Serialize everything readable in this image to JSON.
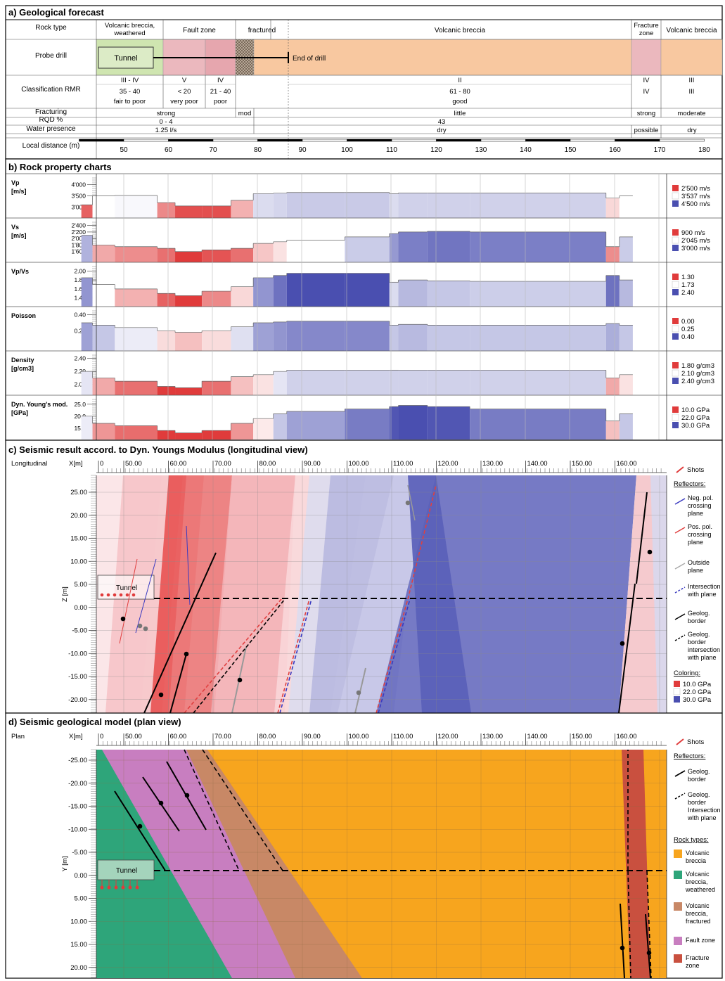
{
  "sections": {
    "a_title": "a) Geological forecast",
    "b_title": "b) Rock property charts",
    "c_title": "c) Seismic result accord. to Dyn. Youngs Modulus (longitudinal view)",
    "d_title": "d) Seismic geological model (plan view)"
  },
  "forecast": {
    "row_labels": [
      "Rock type",
      "Probe drill",
      "Classification RMR",
      "Fracturing",
      "RQD %",
      "Water presence",
      "Local distance (m)"
    ],
    "rock_type_cells": [
      {
        "id": "rt1",
        "text": "Volcanic breccia, weathered"
      },
      {
        "id": "rt2",
        "text": "Fault zone"
      },
      {
        "id": "rt3",
        "text": "fractured"
      },
      {
        "id": "rt4",
        "text": "Volcanic breccia"
      },
      {
        "id": "rt5",
        "text": "Fracture zone"
      },
      {
        "id": "rt6",
        "text": "Volcanic breccia"
      }
    ],
    "probe": {
      "tunnel": "Tunnel",
      "end": "End of drill"
    },
    "rmr_cells": [
      {
        "id": "r1",
        "cls": "III - IV",
        "val": "35 - 40",
        "desc": "fair to poor"
      },
      {
        "id": "r2",
        "cls": "V",
        "val": "< 20",
        "desc": "very poor"
      },
      {
        "id": "r3",
        "cls": "IV",
        "val": "21 - 40",
        "desc": "poor"
      },
      {
        "id": "r4",
        "cls": "II",
        "val": "61 - 80",
        "desc": "good"
      },
      {
        "id": "r5",
        "cls": "IV",
        "val": "",
        "desc": ""
      },
      {
        "id": "r6",
        "cls": "III",
        "val": "",
        "desc": ""
      }
    ],
    "fracturing": [
      "strong",
      "mod",
      "little",
      "strong",
      "moderate"
    ],
    "rqd": [
      "0 - 4",
      "43"
    ],
    "water": [
      "1.25 l/s",
      "dry",
      "possible",
      "dry"
    ],
    "distance_ticks": [
      "50",
      "60",
      "70",
      "80",
      "90",
      "100",
      "110",
      "120",
      "130",
      "140",
      "150",
      "160",
      "170",
      "180"
    ]
  },
  "chart_data": [
    {
      "type": "area",
      "title": "b) Rock property charts",
      "x_unit": "m",
      "x_breaks": [
        40.5,
        43,
        48,
        57.5,
        61.5,
        67.5,
        74,
        79,
        83.5,
        86.5,
        99.5,
        109.5,
        111.5,
        118,
        127.5,
        158,
        161,
        164
      ],
      "panels": [
        {
          "name": "Vp",
          "unit": "[m/s]",
          "ticks": [
            "4'000",
            "3'500",
            "3'000"
          ],
          "legend": [
            "2'500 m/s",
            "3'537 m/s",
            "4'500 m/s"
          ],
          "ylim": [
            2700,
            4300
          ],
          "values": [
            3100,
            3500,
            3520,
            3200,
            3050,
            3050,
            3300,
            3600,
            3620,
            3650,
            3650,
            3600,
            3630,
            3630,
            3630,
            3400,
            3500
          ]
        },
        {
          "name": "Vs",
          "unit": "[m/s]",
          "ticks": [
            "2'400",
            "2'200",
            "2'000",
            "1'800",
            "1'600"
          ],
          "legend": [
            "900 m/s",
            "2'045 m/s",
            "3'000 m/s"
          ],
          "ylim": [
            1400,
            2500
          ],
          "values": [
            2100,
            1800,
            1750,
            1700,
            1600,
            1650,
            1700,
            1850,
            1900,
            1950,
            2050,
            2150,
            2200,
            2220,
            2200,
            1750,
            2050
          ]
        },
        {
          "name": "Vp/Vs",
          "unit": "",
          "ticks": [
            "2.00",
            "1.80",
            "1.60",
            "1.40"
          ],
          "legend": [
            "1.30",
            "1.73",
            "2.40"
          ],
          "ylim": [
            1.3,
            2.1
          ],
          "values": [
            1.85,
            1.7,
            1.6,
            1.5,
            1.45,
            1.55,
            1.65,
            1.85,
            1.9,
            1.95,
            1.95,
            1.75,
            1.8,
            1.78,
            1.77,
            1.9,
            1.8
          ]
        },
        {
          "name": "Poisson",
          "unit": "",
          "ticks": [
            "0.40",
            "0.20"
          ],
          "legend": [
            "0.00",
            "0.25",
            "0.40"
          ],
          "ylim": [
            0.0,
            0.45
          ],
          "values": [
            0.3,
            0.27,
            0.24,
            0.2,
            0.18,
            0.2,
            0.25,
            0.3,
            0.31,
            0.32,
            0.32,
            0.27,
            0.28,
            0.27,
            0.27,
            0.29,
            0.27
          ]
        },
        {
          "name": "Density",
          "unit": "[g/cm3]",
          "ticks": [
            "2.40",
            "2.20",
            "2.00"
          ],
          "legend": [
            "1.80 g/cm3",
            "2.10 g/cm3",
            "2.40 g/cm3"
          ],
          "ylim": [
            1.9,
            2.45
          ],
          "values": [
            2.2,
            2.1,
            2.05,
            1.97,
            1.95,
            2.05,
            2.12,
            2.15,
            2.2,
            2.22,
            2.22,
            2.22,
            2.22,
            2.22,
            2.22,
            2.1,
            2.15
          ]
        },
        {
          "name": "Dyn. Young's mod.",
          "unit": "[GPa]",
          "ticks": [
            "25.0",
            "20.0",
            "15.0"
          ],
          "legend": [
            "10.0 GPa",
            "22.0 GPa",
            "30.0 GPa"
          ],
          "ylim": [
            12,
            27
          ],
          "values": [
            20,
            17,
            16,
            14,
            13,
            14,
            17,
            19,
            21,
            22,
            23,
            24,
            24.5,
            24,
            23,
            18,
            21
          ]
        }
      ]
    }
  ],
  "longitudinal": {
    "label": "Longitudinal",
    "x_axis_label": "X[m]",
    "x_ticks": [
      "0",
      "50.00",
      "60.00",
      "70.00",
      "80.00",
      "90.00",
      "100.00",
      "110.00",
      "120.00",
      "130.00",
      "140.00",
      "150.00",
      "160.00"
    ],
    "z_axis_label": "Z [m]",
    "z_ticks": [
      "25.00",
      "20.00",
      "15.00",
      "10.00",
      "5.00",
      "0.00",
      "-5.00",
      "-10.00",
      "-15.00",
      "-20.00"
    ],
    "tunnel": "Tunnel",
    "legend": {
      "shots": "Shots",
      "reflectors": "Reflectors:",
      "items": [
        "Neg. pol. crossing plane",
        "Pos. pol. crossing plane",
        "Outside plane",
        "Intersection with plane",
        "Geolog. border",
        "Geolog. border intersection with plane"
      ],
      "coloring": "Coloring:",
      "colors": [
        "10.0 GPa",
        "22.0 GPa",
        "30.0 GPa"
      ]
    }
  },
  "plan": {
    "label": "Plan",
    "x_axis_label": "X[m]",
    "x_ticks": [
      "0",
      "50.00",
      "60.00",
      "70.00",
      "80.00",
      "90.00",
      "100.00",
      "110.00",
      "120.00",
      "130.00",
      "140.00",
      "150.00",
      "160.00"
    ],
    "y_axis_label": "Y [m]",
    "y_ticks": [
      "-25.00",
      "-20.00",
      "-15.00",
      "-10.00",
      "-5.00",
      "0.00",
      "5.00",
      "10.00",
      "15.00",
      "20.00"
    ],
    "tunnel": "Tunnel",
    "legend": {
      "shots": "Shots",
      "reflectors": "Reflectors:",
      "items": [
        "Geolog. border",
        "Geolog. border Intersection with plane"
      ],
      "rock_types": "Rock types:",
      "rocks": [
        {
          "name": "Volcanic breccia",
          "color": "#f7a51e"
        },
        {
          "name": "Volcanic breccia, weathered",
          "color": "#2ea57a"
        },
        {
          "name": "Volcanic breccia, fractured",
          "color": "#c88866"
        },
        {
          "name": "Fault zone",
          "color": "#c87ec0"
        },
        {
          "name": "Fracture zone",
          "color": "#c9503f"
        }
      ]
    }
  },
  "colors": {
    "red": "#e03b3b",
    "blue": "#4a4fb0",
    "orange": "#f7a51e",
    "green_light": "#cfe5b0",
    "pink": "#ebb8be",
    "peach": "#f8c8a0"
  }
}
